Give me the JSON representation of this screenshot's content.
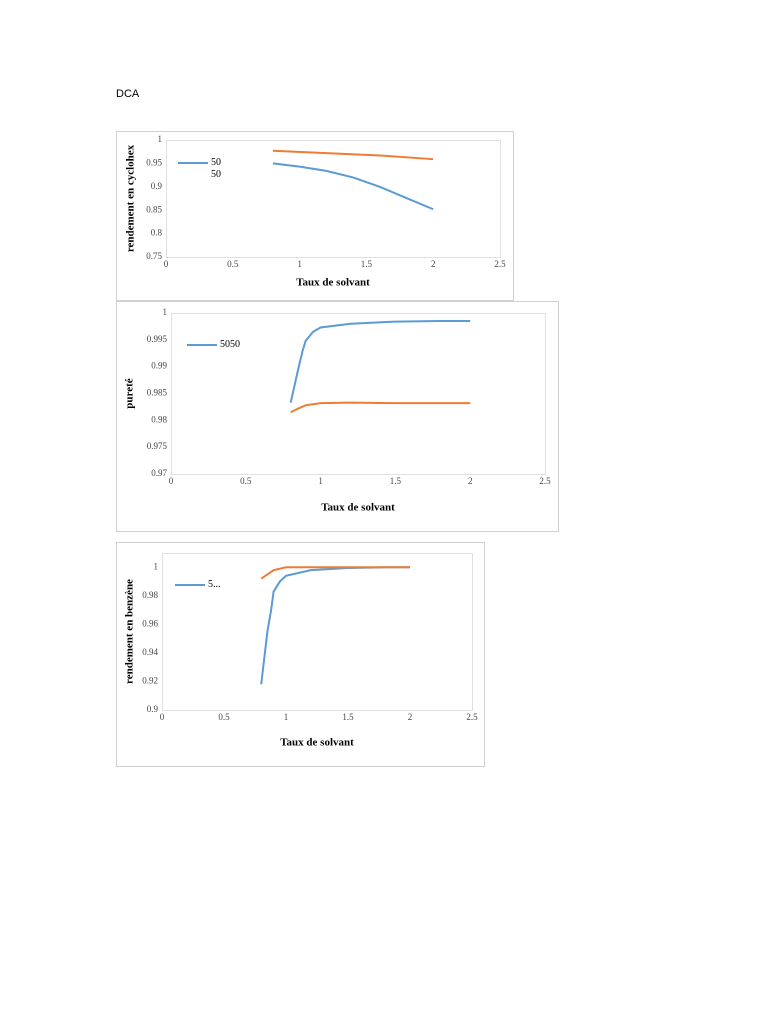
{
  "page_title": "DCA",
  "chart_data": [
    {
      "type": "line",
      "y_label": "rendement en cyclohex",
      "x_label": "Taux de solvant",
      "xlim": [
        0,
        2.5
      ],
      "xticks": [
        0,
        0.5,
        1,
        1.5,
        2,
        2.5
      ],
      "ylim": [
        0.75,
        1
      ],
      "yticks": [
        0.75,
        0.8,
        0.85,
        0.9,
        0.95,
        1
      ],
      "series": [
        {
          "name": "5050",
          "color": "#5b9bd5",
          "x": [
            0.8,
            1.0,
            1.2,
            1.4,
            1.6,
            1.8,
            2.0
          ],
          "values": [
            0.95,
            0.943,
            0.934,
            0.92,
            0.9,
            0.876,
            0.852
          ]
        },
        {
          "color": "#ed7d31",
          "x": [
            0.8,
            1.2,
            1.6,
            2.0
          ],
          "values": [
            0.977,
            0.972,
            0.967,
            0.959
          ]
        }
      ]
    },
    {
      "type": "line",
      "y_label": "pureté",
      "x_label": "Taux de solvant",
      "xlim": [
        0,
        2.5
      ],
      "xticks": [
        0,
        0.5,
        1,
        1.5,
        2,
        2.5
      ],
      "ylim": [
        0.97,
        1
      ],
      "yticks": [
        0.97,
        0.975,
        0.98,
        0.985,
        0.99,
        0.995,
        1
      ],
      "series": [
        {
          "name": "5050",
          "color": "#5b9bd5",
          "x": [
            0.8,
            0.85,
            0.88,
            0.9,
            0.95,
            1.0,
            1.2,
            1.5,
            1.8,
            2.0
          ],
          "values": [
            0.9833,
            0.9895,
            0.993,
            0.9948,
            0.9965,
            0.9973,
            0.998,
            0.9984,
            0.9985,
            0.9985
          ]
        },
        {
          "color": "#ed7d31",
          "x": [
            0.8,
            0.85,
            0.9,
            1.0,
            1.2,
            1.5,
            2.0
          ],
          "values": [
            0.9815,
            0.9822,
            0.9828,
            0.9832,
            0.9833,
            0.9832,
            0.9832
          ]
        }
      ]
    },
    {
      "type": "line",
      "y_label": "rendement en benzène",
      "x_label": "Taux de solvant",
      "xlim": [
        0,
        2.5
      ],
      "xticks": [
        0,
        0.5,
        1,
        1.5,
        2,
        2.5
      ],
      "ylim": [
        0.9,
        1.01
      ],
      "yticks": [
        0.9,
        0.92,
        0.94,
        0.96,
        0.98,
        1
      ],
      "series": [
        {
          "name": "5...",
          "color": "#5b9bd5",
          "x": [
            0.8,
            0.85,
            0.88,
            0.9,
            0.95,
            1.0,
            1.2,
            1.5,
            1.8,
            2.0
          ],
          "values": [
            0.918,
            0.955,
            0.97,
            0.983,
            0.99,
            0.994,
            0.998,
            0.9995,
            1.0,
            1.0
          ]
        },
        {
          "color": "#ed7d31",
          "x": [
            0.8,
            0.9,
            1.0,
            1.5,
            2.0
          ],
          "values": [
            0.992,
            0.998,
            1.0,
            1.0,
            1.0
          ]
        }
      ]
    }
  ]
}
